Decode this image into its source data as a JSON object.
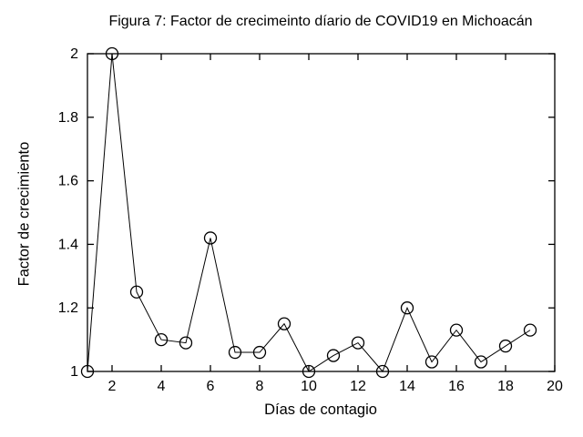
{
  "figure": {
    "background_color": "#ffffff",
    "foreground_color": "#000000"
  },
  "chart_data": {
    "type": "line",
    "title": "Figura 7: Factor de crecimeinto díario de COVID19 en Michoacán",
    "xlabel": "Días de contagio",
    "ylabel": "Factor de crecimiento",
    "x": [
      1,
      2,
      3,
      4,
      5,
      6,
      7,
      8,
      9,
      10,
      11,
      12,
      13,
      14,
      15,
      16,
      17,
      18,
      19
    ],
    "values": [
      1.0,
      2.0,
      1.25,
      1.1,
      1.09,
      1.42,
      1.06,
      1.06,
      1.15,
      1.0,
      1.05,
      1.09,
      1.0,
      1.2,
      1.03,
      1.13,
      1.03,
      1.08,
      1.13
    ],
    "xlim": [
      1,
      20
    ],
    "ylim": [
      1,
      2
    ],
    "xticks": [
      2,
      4,
      6,
      8,
      10,
      12,
      14,
      16,
      18,
      20
    ],
    "xtick_labels": [
      "2",
      "4",
      "6",
      "8",
      "10",
      "12",
      "14",
      "16",
      "18",
      "20"
    ],
    "yticks": [
      1,
      1.2,
      1.4,
      1.6,
      1.8,
      2
    ],
    "ytick_labels": [
      "1",
      "1.2",
      "1.4",
      "1.6",
      "1.8",
      "2"
    ],
    "grid": false,
    "legend": "none",
    "box": "on",
    "marker": "open-circle",
    "line_color": "#000000",
    "marker_edge_color": "#000000",
    "marker_fill": "none"
  }
}
